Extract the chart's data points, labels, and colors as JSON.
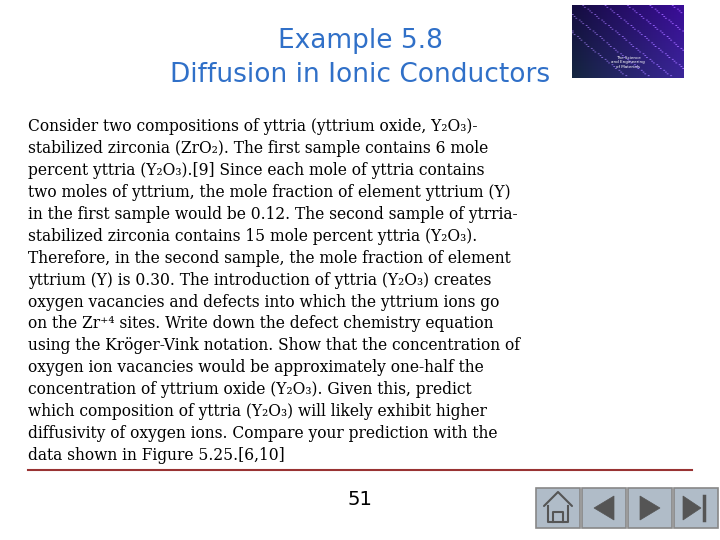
{
  "title_line1": "Example 5.8",
  "title_line2": "Diffusion in Ionic Conductors",
  "title_color": "#3070C8",
  "body_text": "Consider two compositions of yttria (yttrium oxide, Y₂O₃)-\nstabilized zirconia (ZrO₂). The first sample contains 6 mole\npercent yttria (Y₂O₃).[9] Since each mole of yttria contains\ntwo moles of yttrium, the mole fraction of element yttrium (Y)\nin the first sample would be 0.12. The second sample of ytrria-\nstabilized zirconia contains 15 mole percent yttria (Y₂O₃).\nTherefore, in the second sample, the mole fraction of element\nyttrium (Y) is 0.30. The introduction of yttria (Y₂O₃) creates\noxygen vacancies and defects into which the yttrium ions go\non the Zr⁺⁴ sites. Write down the defect chemistry equation\nusing the Kröger-Vink notation. Show that the concentration of\noxygen ion vacancies would be approximately one-half the\nconcentration of yttrium oxide (Y₂O₃). Given this, predict\nwhich composition of yttria (Y₂O₃) will likely exhibit higher\ndiffusivity of oxygen ions. Compare your prediction with the\ndata shown in Figure 5.25.[6,10]",
  "page_number": "51",
  "background_color": "#ffffff",
  "text_color": "#000000",
  "body_fontsize": 11.2,
  "title_fontsize": 19,
  "separator_color": "#993333",
  "btn_color_face": "#b0bcc8",
  "btn_color_edge": "#888888",
  "btn_icon_color": "#555555"
}
